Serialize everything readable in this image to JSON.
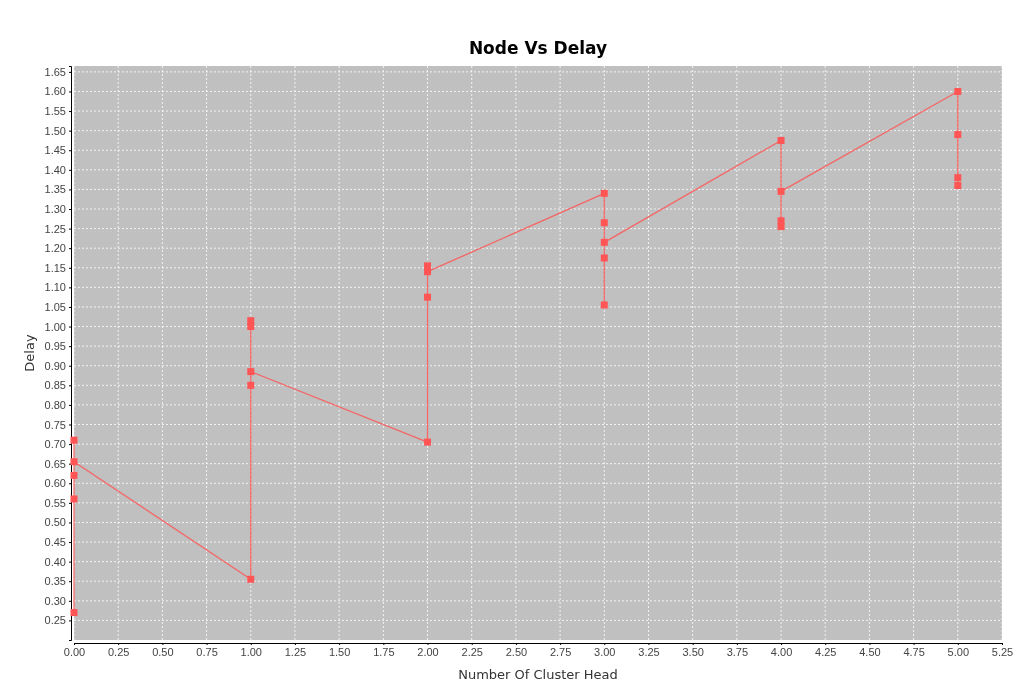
{
  "chart_data": {
    "type": "line",
    "title": "Node Vs  Delay",
    "xlabel": "Number Of Cluster Head",
    "ylabel": "Delay",
    "x": [
      0,
      0,
      0,
      0,
      0,
      1,
      1,
      1,
      1,
      1,
      2,
      2,
      2,
      2,
      3,
      3,
      3,
      3,
      3,
      4,
      4,
      4,
      4,
      5,
      5,
      5,
      5
    ],
    "series": [
      {
        "color": "#ff5555",
        "values": [
          0.71,
          0.27,
          0.56,
          0.62,
          0.655,
          0.355,
          1.015,
          1.0,
          0.85,
          0.885,
          0.705,
          1.075,
          1.155,
          1.14,
          1.34,
          1.265,
          1.055,
          1.175,
          1.215,
          1.475,
          1.27,
          1.255,
          1.345,
          1.6,
          1.49,
          1.38,
          1.36
        ]
      }
    ],
    "xlim": [
      0,
      5.25
    ],
    "ylim": [
      0.2,
      1.665
    ],
    "xticks": [
      {
        "value": 0,
        "label": "0.00"
      },
      {
        "value": 0.25,
        "label": "0.25"
      },
      {
        "value": 0.5,
        "label": "0.50"
      },
      {
        "value": 0.75,
        "label": "0.75"
      },
      {
        "value": 1,
        "label": "1.00"
      },
      {
        "value": 1.25,
        "label": "1.25"
      },
      {
        "value": 1.5,
        "label": "1.50"
      },
      {
        "value": 1.75,
        "label": "1.75"
      },
      {
        "value": 2,
        "label": "2.00"
      },
      {
        "value": 2.25,
        "label": "2.25"
      },
      {
        "value": 2.5,
        "label": "2.50"
      },
      {
        "value": 2.75,
        "label": "2.75"
      },
      {
        "value": 3,
        "label": "3.00"
      },
      {
        "value": 3.25,
        "label": "3.25"
      },
      {
        "value": 3.5,
        "label": "3.50"
      },
      {
        "value": 3.75,
        "label": "3.75"
      },
      {
        "value": 4,
        "label": "4.00"
      },
      {
        "value": 4.25,
        "label": "4.25"
      },
      {
        "value": 4.5,
        "label": "4.50"
      },
      {
        "value": 4.75,
        "label": "4.75"
      },
      {
        "value": 5,
        "label": "5.00"
      },
      {
        "value": 5.25,
        "label": "5.25"
      }
    ],
    "yticks": [
      {
        "value": 0.25,
        "label": "0.25"
      },
      {
        "value": 0.3,
        "label": "0.30"
      },
      {
        "value": 0.35,
        "label": "0.35"
      },
      {
        "value": 0.4,
        "label": "0.40"
      },
      {
        "value": 0.45,
        "label": "0.45"
      },
      {
        "value": 0.5,
        "label": "0.50"
      },
      {
        "value": 0.55,
        "label": "0.55"
      },
      {
        "value": 0.6,
        "label": "0.60"
      },
      {
        "value": 0.65,
        "label": "0.65"
      },
      {
        "value": 0.7,
        "label": "0.70"
      },
      {
        "value": 0.75,
        "label": "0.75"
      },
      {
        "value": 0.8,
        "label": "0.80"
      },
      {
        "value": 0.85,
        "label": "0.85"
      },
      {
        "value": 0.9,
        "label": "0.90"
      },
      {
        "value": 0.95,
        "label": "0.95"
      },
      {
        "value": 1,
        "label": "1.00"
      },
      {
        "value": 1.05,
        "label": "1.05"
      },
      {
        "value": 1.1,
        "label": "1.10"
      },
      {
        "value": 1.15,
        "label": "1.15"
      },
      {
        "value": 1.2,
        "label": "1.20"
      },
      {
        "value": 1.25,
        "label": "1.25"
      },
      {
        "value": 1.3,
        "label": "1.30"
      },
      {
        "value": 1.35,
        "label": "1.35"
      },
      {
        "value": 1.4,
        "label": "1.40"
      },
      {
        "value": 1.45,
        "label": "1.45"
      },
      {
        "value": 1.5,
        "label": "1.50"
      },
      {
        "value": 1.55,
        "label": "1.55"
      },
      {
        "value": 1.6,
        "label": "1.60"
      },
      {
        "value": 1.65,
        "label": "1.65"
      }
    ],
    "grid": true,
    "marker": "square",
    "line_style": "solid"
  }
}
